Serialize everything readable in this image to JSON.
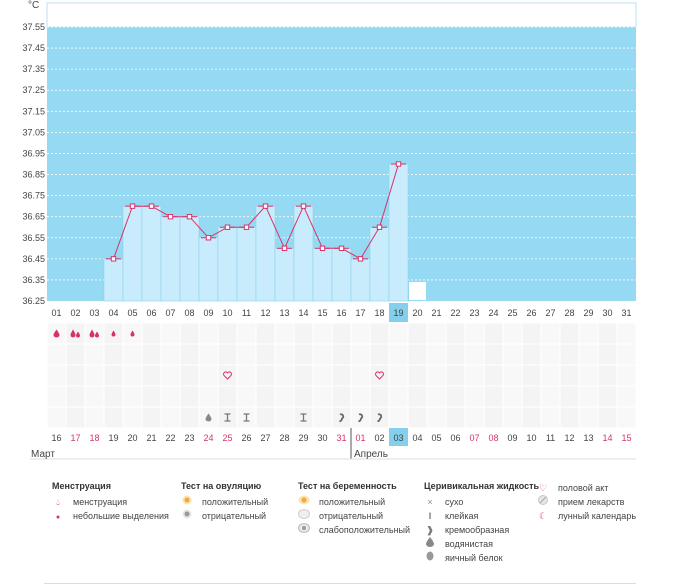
{
  "unit": "°C",
  "chart_data": {
    "type": "line",
    "y_ticks": [
      "36.25",
      "36.35",
      "36.45",
      "36.55",
      "36.65",
      "36.75",
      "36.85",
      "36.95",
      "37.05",
      "37.15",
      "37.25",
      "37.35",
      "37.45",
      "37.55"
    ],
    "ylim": [
      36.25,
      37.55
    ],
    "cycle_days": [
      "01",
      "02",
      "03",
      "04",
      "05",
      "06",
      "07",
      "08",
      "09",
      "10",
      "11",
      "12",
      "13",
      "14",
      "15",
      "16",
      "17",
      "18",
      "19",
      "20",
      "21",
      "22",
      "23",
      "24",
      "25",
      "26",
      "27",
      "28",
      "29",
      "30",
      "31"
    ],
    "series": [
      {
        "values": [
          null,
          null,
          null,
          36.45,
          36.7,
          36.7,
          36.65,
          36.65,
          36.55,
          36.6,
          36.6,
          36.7,
          36.5,
          36.7,
          36.5,
          36.5,
          36.45,
          36.6,
          36.9,
          null,
          null,
          null,
          null,
          null,
          null,
          null,
          null,
          null,
          null,
          null,
          null
        ]
      }
    ],
    "current_day": "19",
    "colors": {
      "background": "#95d9f3",
      "bar": "#c8ecfb",
      "line": "#d6336c",
      "highlight": "#83cfec",
      "red_text": "#d6336c"
    }
  },
  "dates": [
    {
      "t": "16",
      "red": false
    },
    {
      "t": "17",
      "red": true
    },
    {
      "t": "18",
      "red": true
    },
    {
      "t": "19",
      "red": false
    },
    {
      "t": "20",
      "red": false
    },
    {
      "t": "21",
      "red": false
    },
    {
      "t": "22",
      "red": false
    },
    {
      "t": "23",
      "red": false
    },
    {
      "t": "24",
      "red": true
    },
    {
      "t": "25",
      "red": true
    },
    {
      "t": "26",
      "red": false
    },
    {
      "t": "27",
      "red": false
    },
    {
      "t": "28",
      "red": false
    },
    {
      "t": "29",
      "red": false
    },
    {
      "t": "30",
      "red": false
    },
    {
      "t": "31",
      "red": true
    },
    {
      "t": "01",
      "red": true
    },
    {
      "t": "02",
      "red": false
    },
    {
      "t": "03",
      "red": false
    },
    {
      "t": "04",
      "red": false
    },
    {
      "t": "05",
      "red": false
    },
    {
      "t": "06",
      "red": false
    },
    {
      "t": "07",
      "red": true
    },
    {
      "t": "08",
      "red": true
    },
    {
      "t": "09",
      "red": false
    },
    {
      "t": "10",
      "red": false
    },
    {
      "t": "11",
      "red": false
    },
    {
      "t": "12",
      "red": false
    },
    {
      "t": "13",
      "red": false
    },
    {
      "t": "14",
      "red": true
    },
    {
      "t": "15",
      "red": true
    }
  ],
  "months": {
    "first": "Март",
    "second": "Апрель"
  },
  "rows": {
    "menstruation": [
      "drop-icon",
      "double-drop-icon",
      "double-drop-icon",
      "small-drop-icon",
      "small-drop-icon"
    ],
    "intercourse_days": [
      "10",
      "18"
    ],
    "fluid": [
      {
        "day": "09",
        "icon": "water-drop-icon"
      },
      {
        "day": "10",
        "icon": "sticky-icon"
      },
      {
        "day": "11",
        "icon": "sticky-icon"
      },
      {
        "day": "14",
        "icon": "sticky-icon"
      },
      {
        "day": "16",
        "icon": "creamy-icon"
      },
      {
        "day": "17",
        "icon": "creamy-icon"
      },
      {
        "day": "18",
        "icon": "creamy-icon"
      }
    ],
    "lunar_day": "20"
  },
  "legend": {
    "menstruation": {
      "title": "Менструация",
      "items": [
        {
          "icon": "drop-icon",
          "label": "менструация"
        },
        {
          "icon": "small-drop-icon",
          "label": "небольшие выделения"
        }
      ]
    },
    "ovulation": {
      "title": "Тест на овуляцию",
      "items": [
        {
          "icon": "positive-ovulation-icon",
          "label": "положительный"
        },
        {
          "icon": "negative-ovulation-icon",
          "label": "отрицательный"
        }
      ]
    },
    "pregnancy": {
      "title": "Тест на беременность",
      "items": [
        {
          "icon": "positive-pregnancy-icon",
          "label": "положительный"
        },
        {
          "icon": "negative-pregnancy-icon",
          "label": "отрицательный"
        },
        {
          "icon": "weak-pregnancy-icon",
          "label": "слабоположительный"
        }
      ]
    },
    "fluid": {
      "title": "Церивикальная жидкость",
      "items": [
        {
          "icon": "dry-icon",
          "label": "сухо"
        },
        {
          "icon": "sticky-icon",
          "label": "клейкая"
        },
        {
          "icon": "creamy-icon",
          "label": "кремообразная"
        },
        {
          "icon": "water-drop-icon",
          "label": "водянистая"
        },
        {
          "icon": "egg-white-icon",
          "label": "яичный белок"
        }
      ]
    },
    "other": {
      "items": [
        {
          "icon": "heart-icon",
          "label": "половой акт"
        },
        {
          "icon": "pill-icon",
          "label": "прием лекарств"
        },
        {
          "icon": "moon-icon",
          "label": "лунный календарь"
        }
      ]
    }
  }
}
